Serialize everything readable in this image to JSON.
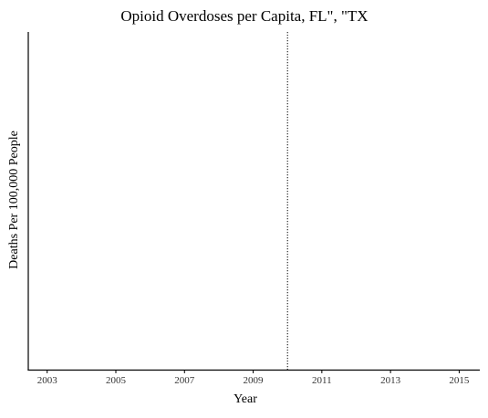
{
  "chart_data": {
    "type": "line",
    "title": "Opioid Overdoses per Capita, FL\", \"TX",
    "xlabel": "Year",
    "ylabel": "Deaths Per 100,000 People",
    "xlim": [
      2002.45,
      2015.6
    ],
    "xticks": [
      2003,
      2005,
      2007,
      2009,
      2011,
      2013,
      2015
    ],
    "xtick_labels": [
      "2003",
      "2005",
      "2007",
      "2009",
      "2011",
      "2013",
      "2015"
    ],
    "yticks": [],
    "series": [],
    "reference_lines": [
      {
        "axis": "x",
        "value": 2010,
        "style": "dotted",
        "color": "#000000"
      }
    ],
    "grid": false,
    "legend": "none",
    "colors": {
      "axis": "#000000",
      "tick_label": "#333333",
      "reference_line": "#000000"
    }
  }
}
